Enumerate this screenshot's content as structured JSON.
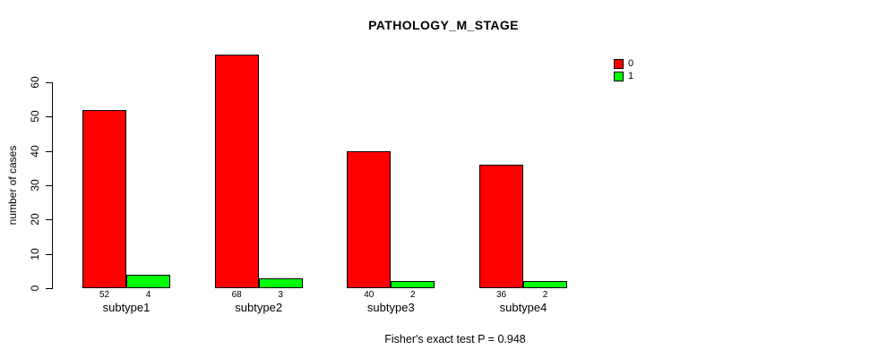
{
  "chart_data": {
    "type": "bar",
    "title": "PATHOLOGY_M_STAGE",
    "categories": [
      "subtype1",
      "subtype2",
      "subtype3",
      "subtype4"
    ],
    "series": [
      {
        "name": "0",
        "color": "#FF0000",
        "values": [
          52,
          68,
          40,
          36
        ]
      },
      {
        "name": "1",
        "color": "#00FF00",
        "values": [
          4,
          3,
          2,
          2
        ]
      }
    ],
    "xlabel": "",
    "ylabel": "number of cases",
    "ylim": [
      0,
      60
    ],
    "yticks": [
      0,
      10,
      20,
      30,
      40,
      50,
      60
    ],
    "show_bar_values": true,
    "grid": false,
    "legend_position": "top-right",
    "annotation": "Fisher's exact test P = 0.948"
  },
  "colors": {
    "background": "#FFFFFF",
    "axis": "#000000",
    "bar_outline": "#000000"
  }
}
